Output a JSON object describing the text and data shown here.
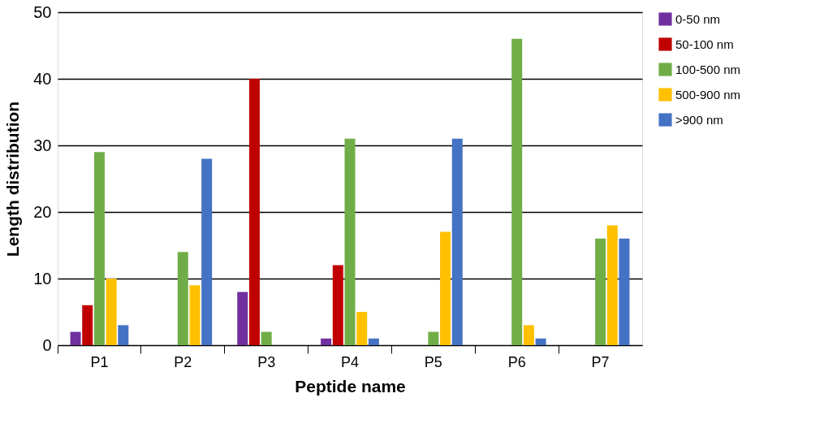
{
  "chart_data": {
    "type": "bar",
    "xlabel": "Peptide name",
    "ylabel": "Length distribution",
    "categories": [
      "P1",
      "P2",
      "P3",
      "P4",
      "P5",
      "P6",
      "P7"
    ],
    "series": [
      {
        "name": "0-50 nm",
        "color": "#7030a0",
        "values": [
          2,
          0,
          8,
          1,
          0,
          0,
          0
        ]
      },
      {
        "name": "50-100 nm",
        "color": "#c00000",
        "values": [
          6,
          0,
          40,
          12,
          0,
          0,
          0
        ]
      },
      {
        "name": "100-500 nm",
        "color": "#70ad47",
        "values": [
          29,
          14,
          2,
          31,
          2,
          46,
          16
        ]
      },
      {
        "name": "500-900 nm",
        "color": "#ffc000",
        "values": [
          10,
          9,
          0,
          5,
          17,
          3,
          18
        ]
      },
      {
        "name": ">900 nm",
        "color": "#4472c4",
        "values": [
          3,
          28,
          0,
          1,
          31,
          1,
          16
        ]
      }
    ],
    "ylim": [
      0,
      50
    ],
    "yticks": [
      0,
      10,
      20,
      30,
      40,
      50
    ],
    "grid": "y",
    "legend": "top right"
  }
}
